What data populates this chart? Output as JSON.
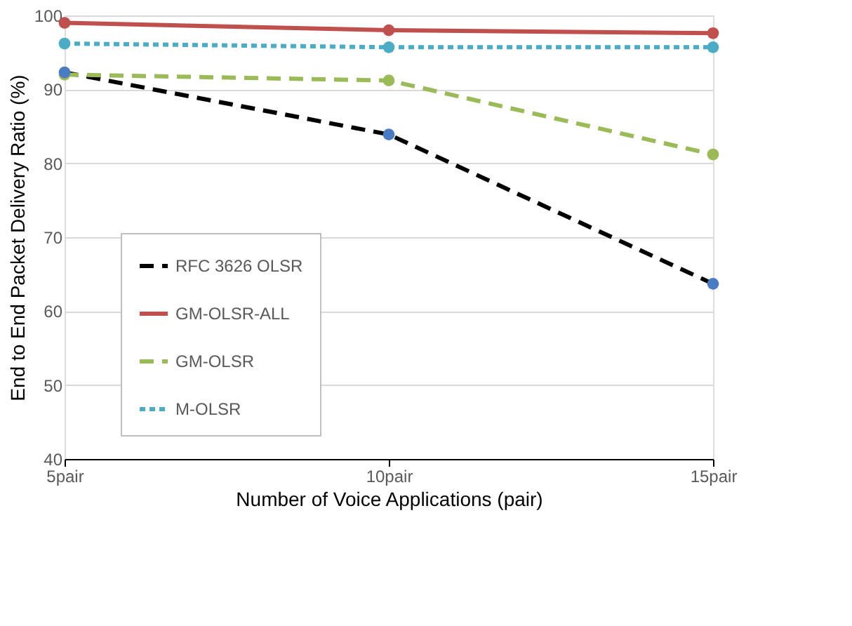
{
  "chart_data": {
    "type": "line",
    "xlabel": "Number of Voice Applications (pair)",
    "ylabel": "End to End Packet Delivery Ratio (%)",
    "categories": [
      "5pair",
      "10pair",
      "15pair"
    ],
    "series": [
      {
        "name": "RFC 3626 OLSR",
        "color": "#000000",
        "colors": [
          "#4a7cc4",
          "#4a7cc4",
          "#4a7cc4"
        ],
        "line_style": "dashed",
        "values": [
          92.3,
          83.9,
          63.7
        ]
      },
      {
        "name": "GM-OLSR-ALL",
        "color": "#c0504d",
        "line_style": "solid",
        "values": [
          99,
          98,
          97.6
        ]
      },
      {
        "name": "GM-OLSR",
        "color": "#9bbb59",
        "line_style": "dashed",
        "values": [
          92,
          91.2,
          81.2
        ]
      },
      {
        "name": "M-OLSR",
        "color": "#4bacc6",
        "line_style": "dotted",
        "values": [
          96.2,
          95.7,
          95.7
        ]
      }
    ],
    "ylim": [
      40,
      100
    ],
    "yticks": [
      40,
      50,
      60,
      70,
      80,
      90,
      100
    ],
    "grid": "y",
    "legend": "bottom left",
    "marker": "circle"
  }
}
